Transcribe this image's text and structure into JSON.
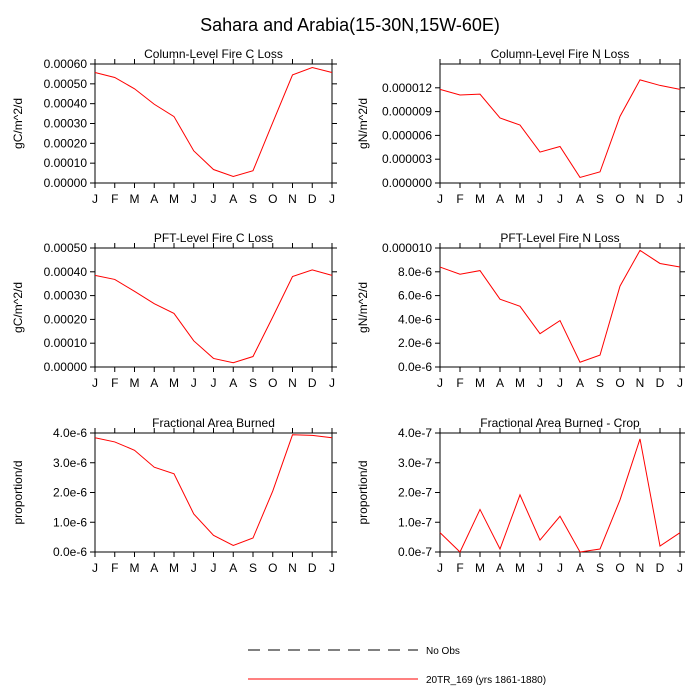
{
  "figure": {
    "title": "Sahara and Arabia(15-30N,15W-60E)"
  },
  "chart_data": [
    {
      "type": "line",
      "title": "Column-Level Fire C Loss",
      "xlabel": "",
      "ylabel": "gC/m^2/d",
      "categories": [
        "J",
        "F",
        "M",
        "A",
        "M",
        "J",
        "J",
        "A",
        "S",
        "O",
        "N",
        "D",
        "J"
      ],
      "ylim": [
        0,
        0.0006
      ],
      "yticks": [
        0,
        0.0001,
        0.0002,
        0.0003,
        0.0004,
        0.0005,
        0.0006
      ],
      "ytick_labels": [
        "0.00000",
        "0.00010",
        "0.00020",
        "0.00030",
        "0.00040",
        "0.00050",
        "0.00060"
      ],
      "series": [
        {
          "name": "20TR_169 (yrs 1861-1880)",
          "color": "#ff0000",
          "values": [
            0.000557,
            0.000532,
            0.000475,
            0.000397,
            0.000335,
            0.000162,
            6.8e-05,
            3.3e-05,
            6.2e-05,
            0.000305,
            0.000545,
            0.000582,
            0.000557
          ]
        }
      ]
    },
    {
      "type": "line",
      "title": "Column-Level Fire N Loss",
      "xlabel": "",
      "ylabel": "gN/m^2/d",
      "categories": [
        "J",
        "F",
        "M",
        "A",
        "M",
        "J",
        "J",
        "A",
        "S",
        "O",
        "N",
        "D",
        "J"
      ],
      "ylim": [
        0,
        1.5e-05
      ],
      "yticks": [
        0,
        3e-06,
        6e-06,
        9e-06,
        1.2e-05
      ],
      "ytick_labels": [
        "0.000000",
        "0.000003",
        "0.000006",
        "0.000009",
        "0.000012"
      ],
      "series": [
        {
          "name": "20TR_169 (yrs 1861-1880)",
          "color": "#ff0000",
          "values": [
            1.18e-05,
            1.11e-05,
            1.12e-05,
            8.2e-06,
            7.3e-06,
            3.9e-06,
            4.6e-06,
            7e-07,
            1.4e-06,
            8.4e-06,
            1.3e-05,
            1.23e-05,
            1.18e-05
          ]
        }
      ]
    },
    {
      "type": "line",
      "title": "PFT-Level Fire C Loss",
      "xlabel": "",
      "ylabel": "gC/m^2/d",
      "categories": [
        "J",
        "F",
        "M",
        "A",
        "M",
        "J",
        "J",
        "A",
        "S",
        "O",
        "N",
        "D",
        "J"
      ],
      "ylim": [
        0,
        0.0005
      ],
      "yticks": [
        0,
        0.0001,
        0.0002,
        0.0003,
        0.0004,
        0.0005
      ],
      "ytick_labels": [
        "0.00000",
        "0.00010",
        "0.00020",
        "0.00030",
        "0.00040",
        "0.00050"
      ],
      "series": [
        {
          "name": "20TR_169 (yrs 1861-1880)",
          "color": "#ff0000",
          "values": [
            0.000385,
            0.000368,
            0.000318,
            0.000266,
            0.000225,
            0.00011,
            3.6e-05,
            1.8e-05,
            4.4e-05,
            0.00021,
            0.00038,
            0.000408,
            0.000385
          ]
        }
      ]
    },
    {
      "type": "line",
      "title": "PFT-Level Fire N Loss",
      "xlabel": "",
      "ylabel": "gN/m^2/d",
      "categories": [
        "J",
        "F",
        "M",
        "A",
        "M",
        "J",
        "J",
        "A",
        "S",
        "O",
        "N",
        "D",
        "J"
      ],
      "ylim": [
        0,
        1e-05
      ],
      "yticks": [
        0,
        2e-06,
        4e-06,
        6e-06,
        8e-06,
        1e-05
      ],
      "ytick_labels": [
        "0.0e-6",
        "2.0e-6",
        "4.0e-6",
        "6.0e-6",
        "8.0e-6",
        "0.000010"
      ],
      "series": [
        {
          "name": "20TR_169 (yrs 1861-1880)",
          "color": "#ff0000",
          "values": [
            8.4e-06,
            7.8e-06,
            8.1e-06,
            5.7e-06,
            5.1e-06,
            2.8e-06,
            3.9e-06,
            4e-07,
            1e-06,
            6.8e-06,
            9.8e-06,
            8.7e-06,
            8.4e-06
          ]
        }
      ]
    },
    {
      "type": "line",
      "title": "Fractional Area Burned",
      "xlabel": "",
      "ylabel": "proportion/d",
      "categories": [
        "J",
        "F",
        "M",
        "A",
        "M",
        "J",
        "J",
        "A",
        "S",
        "O",
        "N",
        "D",
        "J"
      ],
      "ylim": [
        0,
        4e-06
      ],
      "yticks": [
        0,
        1e-06,
        2e-06,
        3e-06,
        4e-06
      ],
      "ytick_labels": [
        "0.0e-6",
        "1.0e-6",
        "2.0e-6",
        "3.0e-6",
        "4.0e-6"
      ],
      "series": [
        {
          "name": "20TR_169 (yrs 1861-1880)",
          "color": "#ff0000",
          "values": [
            3.84e-06,
            3.7e-06,
            3.42e-06,
            2.85e-06,
            2.63e-06,
            1.28e-06,
            5.6e-07,
            2.2e-07,
            4.7e-07,
            2.05e-06,
            3.94e-06,
            3.92e-06,
            3.84e-06
          ]
        }
      ]
    },
    {
      "type": "line",
      "title": "Fractional Area Burned - Crop",
      "xlabel": "",
      "ylabel": "proportion/d",
      "categories": [
        "J",
        "F",
        "M",
        "A",
        "M",
        "J",
        "J",
        "A",
        "S",
        "O",
        "N",
        "D",
        "J"
      ],
      "ylim": [
        0,
        4e-07
      ],
      "yticks": [
        0,
        1e-07,
        2e-07,
        3e-07,
        4e-07
      ],
      "ytick_labels": [
        "0.0e-7",
        "1.0e-7",
        "2.0e-7",
        "3.0e-7",
        "4.0e-7"
      ],
      "series": [
        {
          "name": "20TR_169 (yrs 1861-1880)",
          "color": "#ff0000",
          "values": [
            6.5e-08,
            0.0,
            1.43e-07,
            1e-08,
            1.92e-07,
            4e-08,
            1.2e-07,
            0.0,
            1e-08,
            1.75e-07,
            3.8e-07,
            2e-08,
            6.5e-08
          ]
        }
      ]
    }
  ],
  "legend": {
    "placement": "bottom-center",
    "entries": [
      {
        "label": "No Obs",
        "style": "dashed",
        "color": "#000000"
      },
      {
        "label": "20TR_169 (yrs 1861-1880)",
        "style": "solid",
        "color": "#ff0000"
      }
    ]
  }
}
